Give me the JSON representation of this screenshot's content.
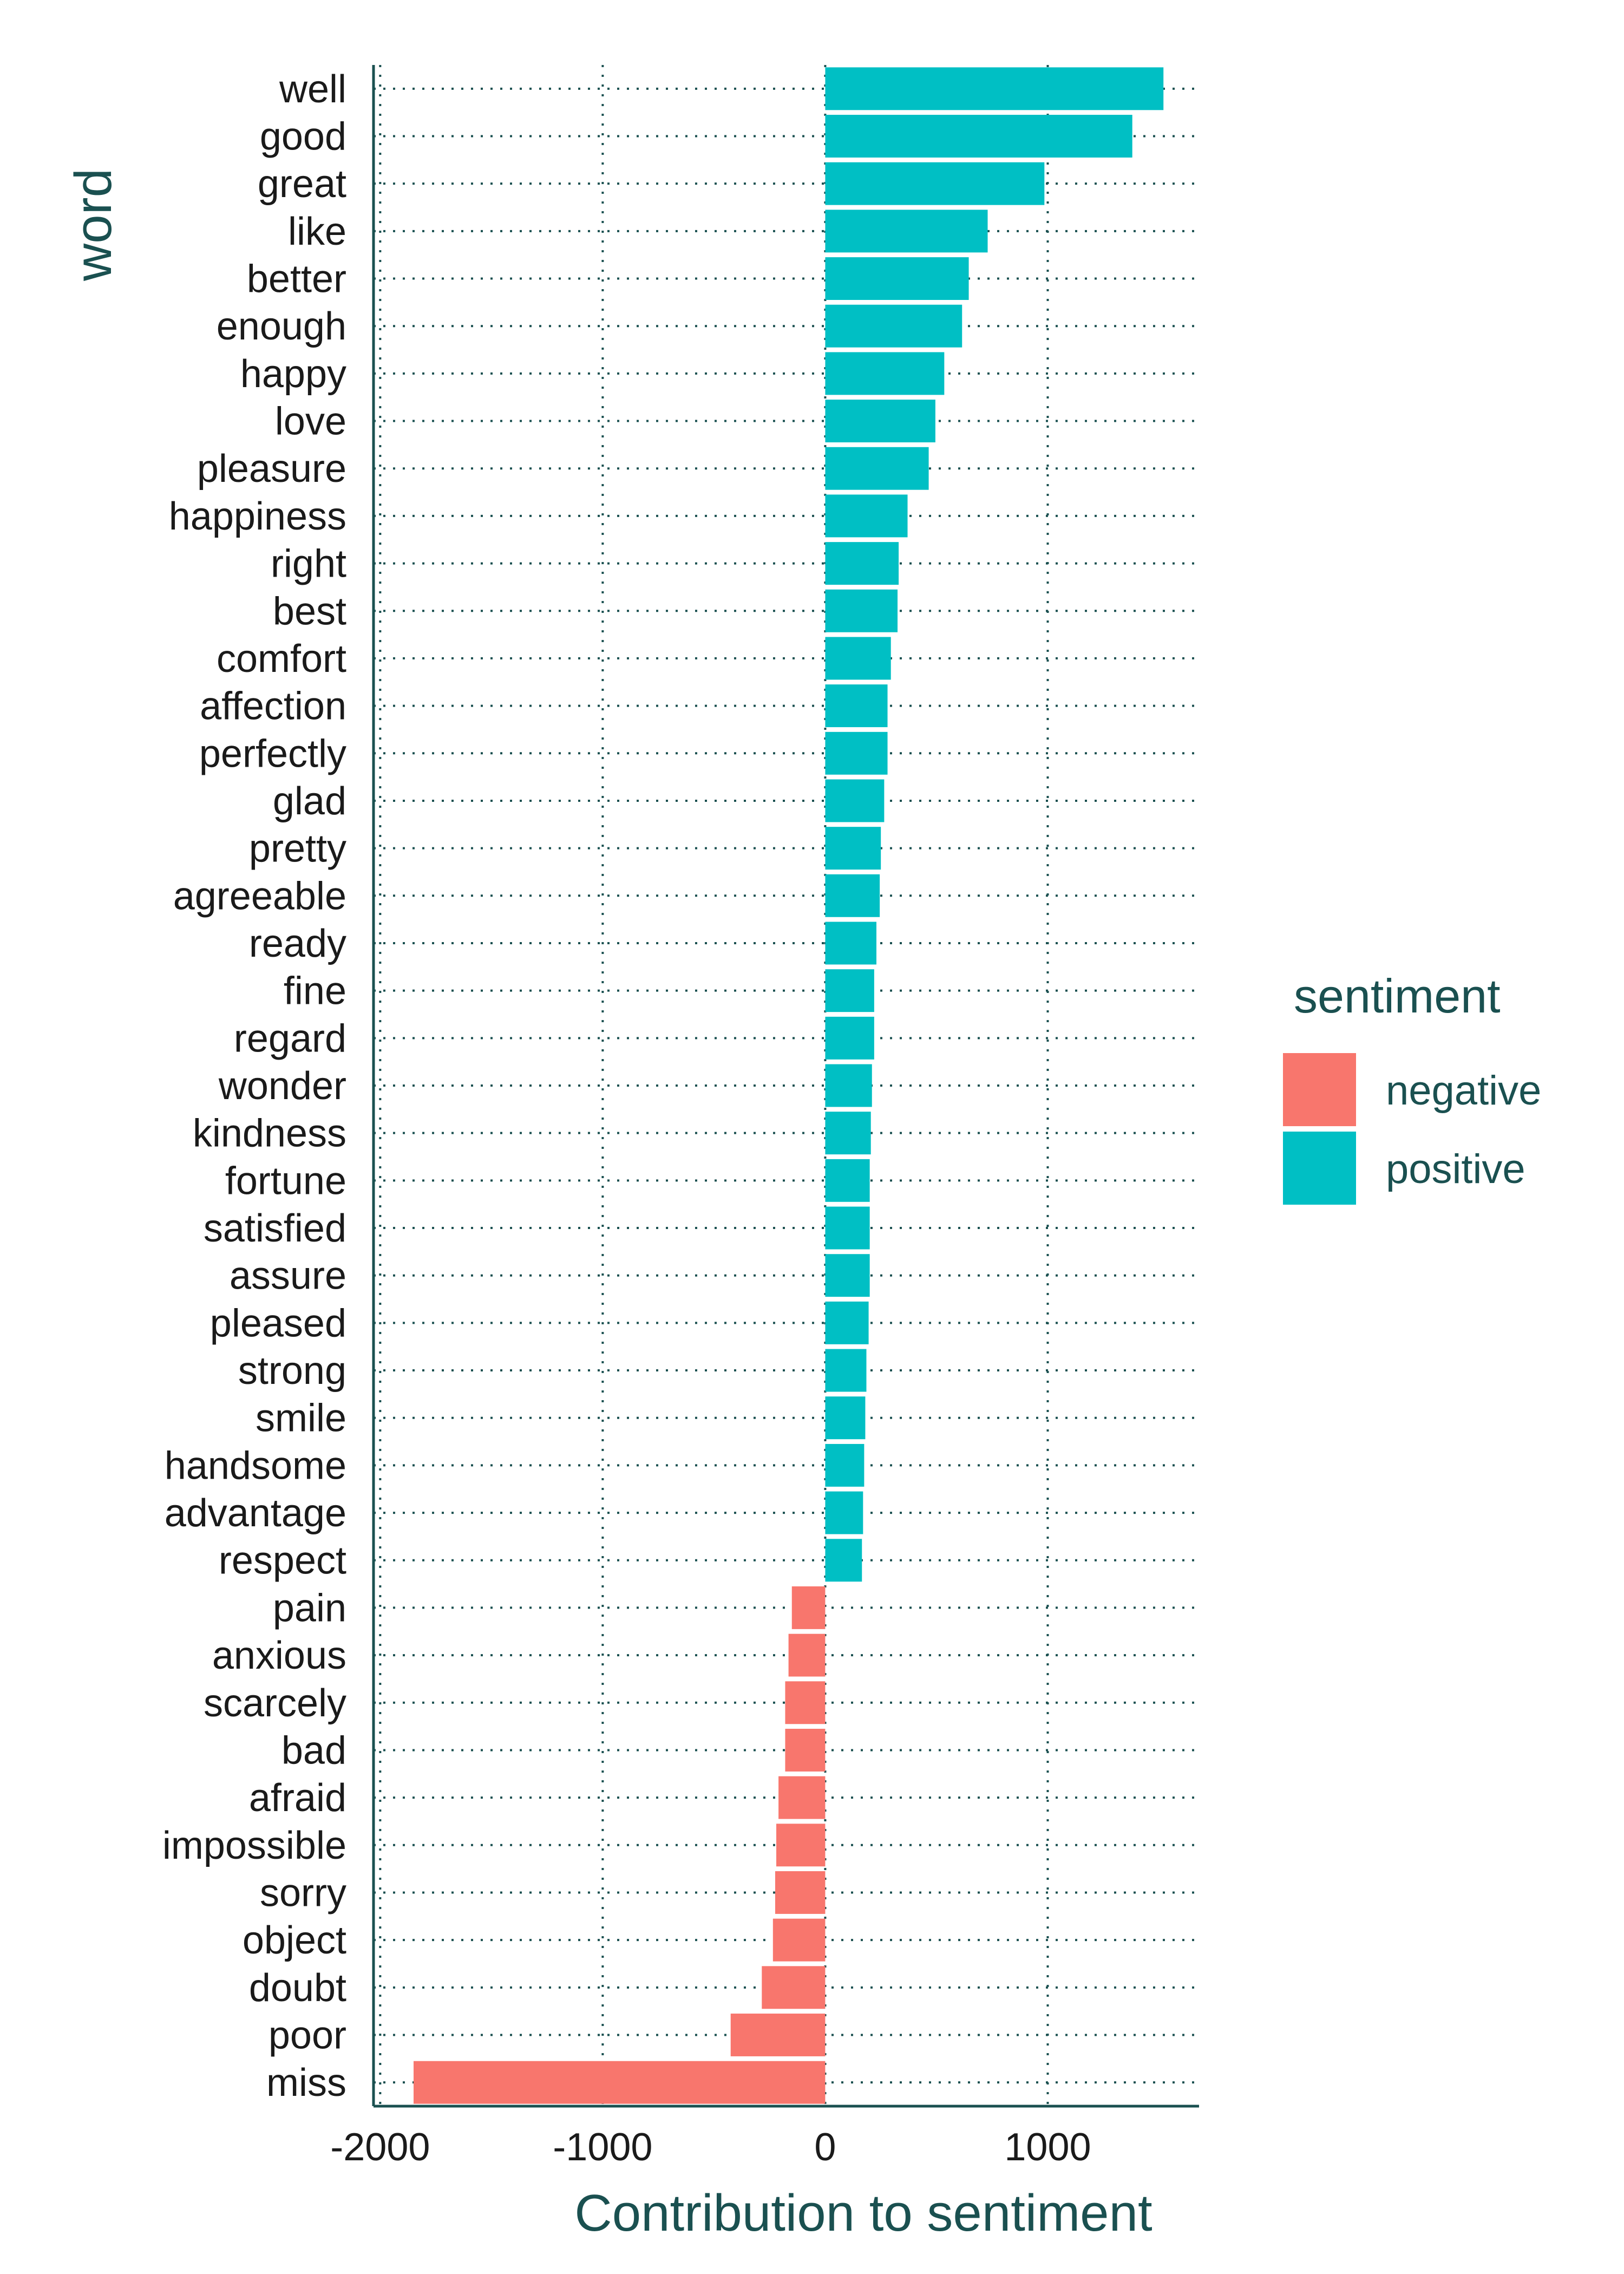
{
  "chart_data": {
    "type": "bar",
    "orientation": "horizontal",
    "xlabel": "Contribution to sentiment",
    "ylabel": "word",
    "xlim": [
      -2030,
      1680
    ],
    "xticks": [
      -2000,
      -1000,
      0,
      1000
    ],
    "xtick_labels": [
      "-2000",
      "-1000",
      "0",
      "1000"
    ],
    "grid": "dotted",
    "legend": {
      "title": "sentiment",
      "placement": "right"
    },
    "colors": {
      "negative": "#f8766d",
      "positive": "#00bfc4",
      "axis": "#1a5050",
      "grid": "#1a5050"
    },
    "bars": [
      {
        "word": "well",
        "value": 1520,
        "sentiment": "positive"
      },
      {
        "word": "good",
        "value": 1380,
        "sentiment": "positive"
      },
      {
        "word": "great",
        "value": 985,
        "sentiment": "positive"
      },
      {
        "word": "like",
        "value": 730,
        "sentiment": "positive"
      },
      {
        "word": "better",
        "value": 645,
        "sentiment": "positive"
      },
      {
        "word": "enough",
        "value": 615,
        "sentiment": "positive"
      },
      {
        "word": "happy",
        "value": 535,
        "sentiment": "positive"
      },
      {
        "word": "love",
        "value": 495,
        "sentiment": "positive"
      },
      {
        "word": "pleasure",
        "value": 465,
        "sentiment": "positive"
      },
      {
        "word": "happiness",
        "value": 370,
        "sentiment": "positive"
      },
      {
        "word": "right",
        "value": 330,
        "sentiment": "positive"
      },
      {
        "word": "best",
        "value": 325,
        "sentiment": "positive"
      },
      {
        "word": "comfort",
        "value": 295,
        "sentiment": "positive"
      },
      {
        "word": "affection",
        "value": 280,
        "sentiment": "positive"
      },
      {
        "word": "perfectly",
        "value": 280,
        "sentiment": "positive"
      },
      {
        "word": "glad",
        "value": 265,
        "sentiment": "positive"
      },
      {
        "word": "pretty",
        "value": 250,
        "sentiment": "positive"
      },
      {
        "word": "agreeable",
        "value": 245,
        "sentiment": "positive"
      },
      {
        "word": "ready",
        "value": 230,
        "sentiment": "positive"
      },
      {
        "word": "fine",
        "value": 220,
        "sentiment": "positive"
      },
      {
        "word": "regard",
        "value": 220,
        "sentiment": "positive"
      },
      {
        "word": "wonder",
        "value": 210,
        "sentiment": "positive"
      },
      {
        "word": "kindness",
        "value": 205,
        "sentiment": "positive"
      },
      {
        "word": "fortune",
        "value": 200,
        "sentiment": "positive"
      },
      {
        "word": "satisfied",
        "value": 200,
        "sentiment": "positive"
      },
      {
        "word": "assure",
        "value": 200,
        "sentiment": "positive"
      },
      {
        "word": "pleased",
        "value": 195,
        "sentiment": "positive"
      },
      {
        "word": "strong",
        "value": 185,
        "sentiment": "positive"
      },
      {
        "word": "smile",
        "value": 180,
        "sentiment": "positive"
      },
      {
        "word": "handsome",
        "value": 175,
        "sentiment": "positive"
      },
      {
        "word": "advantage",
        "value": 170,
        "sentiment": "positive"
      },
      {
        "word": "respect",
        "value": 165,
        "sentiment": "positive"
      },
      {
        "word": "pain",
        "value": -150,
        "sentiment": "negative"
      },
      {
        "word": "anxious",
        "value": -165,
        "sentiment": "negative"
      },
      {
        "word": "scarcely",
        "value": -180,
        "sentiment": "negative"
      },
      {
        "word": "bad",
        "value": -180,
        "sentiment": "negative"
      },
      {
        "word": "afraid",
        "value": -210,
        "sentiment": "negative"
      },
      {
        "word": "impossible",
        "value": -220,
        "sentiment": "negative"
      },
      {
        "word": "sorry",
        "value": -225,
        "sentiment": "negative"
      },
      {
        "word": "object",
        "value": -235,
        "sentiment": "negative"
      },
      {
        "word": "doubt",
        "value": -285,
        "sentiment": "negative"
      },
      {
        "word": "poor",
        "value": -425,
        "sentiment": "negative"
      },
      {
        "word": "miss",
        "value": -1850,
        "sentiment": "negative"
      }
    ]
  }
}
